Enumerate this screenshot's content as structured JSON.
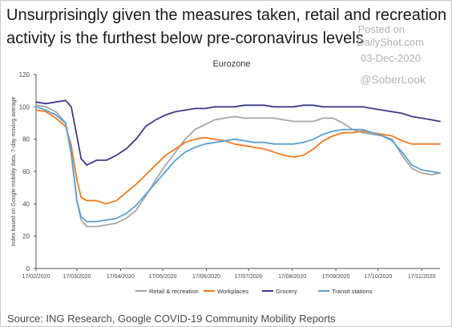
{
  "headline": "Unsurprisingly given the measures taken, retail and recreation activity is the furthest below pre-coronavirus levels",
  "watermark": {
    "posted": "Posted on",
    "site": "DailyShot.com",
    "date": "03-Dec-2020",
    "handle": "@SoberLook"
  },
  "source": "Source: ING Research, Google COVID-19 Community Mobility Reports",
  "chart_data": {
    "type": "line",
    "title": "Eurozone",
    "ylabel": "Index based on Google mobility data, 7-day moving average",
    "xlabel": "",
    "ylim": [
      0,
      120
    ],
    "yticks": [
      0,
      20,
      40,
      60,
      80,
      100,
      120
    ],
    "xlim": [
      "2020-02-17",
      "2020-11-30"
    ],
    "xticks": [
      "17/02/2020",
      "17/03/2020",
      "17/04/2020",
      "17/05/2020",
      "17/06/2020",
      "17/07/2020",
      "17/08/2020",
      "17/09/2020",
      "17/10/2020",
      "17/11/2020"
    ],
    "legend_position": "bottom",
    "grid": false,
    "x": [
      "2020-02-17",
      "2020-02-24",
      "2020-03-02",
      "2020-03-09",
      "2020-03-13",
      "2020-03-17",
      "2020-03-20",
      "2020-03-24",
      "2020-03-31",
      "2020-04-07",
      "2020-04-14",
      "2020-04-21",
      "2020-04-28",
      "2020-05-05",
      "2020-05-12",
      "2020-05-19",
      "2020-05-26",
      "2020-06-02",
      "2020-06-09",
      "2020-06-16",
      "2020-06-23",
      "2020-06-30",
      "2020-07-07",
      "2020-07-14",
      "2020-07-21",
      "2020-07-28",
      "2020-08-04",
      "2020-08-11",
      "2020-08-18",
      "2020-08-25",
      "2020-09-01",
      "2020-09-08",
      "2020-09-15",
      "2020-09-22",
      "2020-09-29",
      "2020-10-06",
      "2020-10-13",
      "2020-10-20",
      "2020-10-27",
      "2020-11-03",
      "2020-11-10",
      "2020-11-17",
      "2020-11-24",
      "2020-11-30"
    ],
    "series": [
      {
        "name": "Retail & recreation",
        "color": "#a6a6a6",
        "values": [
          101,
          100,
          97,
          90,
          70,
          42,
          30,
          26,
          26,
          27,
          28,
          31,
          36,
          45,
          55,
          64,
          72,
          80,
          86,
          89,
          92,
          93,
          94,
          93,
          93,
          93,
          93,
          92,
          91,
          91,
          91,
          93,
          93,
          90,
          86,
          84,
          83,
          82,
          80,
          70,
          62,
          59,
          58,
          59
        ]
      },
      {
        "name": "Workplaces",
        "color": "#f07a1e",
        "values": [
          98,
          97,
          93,
          88,
          76,
          55,
          44,
          42,
          42,
          40,
          42,
          47,
          52,
          58,
          64,
          70,
          74,
          78,
          80,
          81,
          80,
          79,
          77,
          76,
          75,
          74,
          72,
          70,
          69,
          70,
          74,
          79,
          82,
          84,
          84,
          85,
          84,
          83,
          82,
          79,
          77,
          77,
          77,
          77
        ]
      },
      {
        "name": "Grocery",
        "color": "#3e3a8f",
        "values": [
          103,
          102,
          103,
          104,
          100,
          82,
          68,
          64,
          67,
          67,
          70,
          74,
          80,
          88,
          92,
          95,
          97,
          98,
          99,
          99,
          100,
          100,
          100,
          101,
          101,
          101,
          100,
          100,
          100,
          101,
          101,
          100,
          100,
          100,
          100,
          100,
          99,
          98,
          97,
          96,
          94,
          93,
          92,
          91
        ]
      },
      {
        "name": "Transit stations",
        "color": "#5ba0d6",
        "values": [
          100,
          98,
          95,
          90,
          72,
          42,
          32,
          29,
          29,
          30,
          31,
          34,
          39,
          46,
          53,
          60,
          67,
          72,
          75,
          77,
          78,
          79,
          80,
          79,
          78,
          78,
          77,
          77,
          77,
          78,
          80,
          83,
          85,
          86,
          86,
          86,
          84,
          82,
          79,
          72,
          64,
          61,
          60,
          59
        ]
      }
    ]
  }
}
